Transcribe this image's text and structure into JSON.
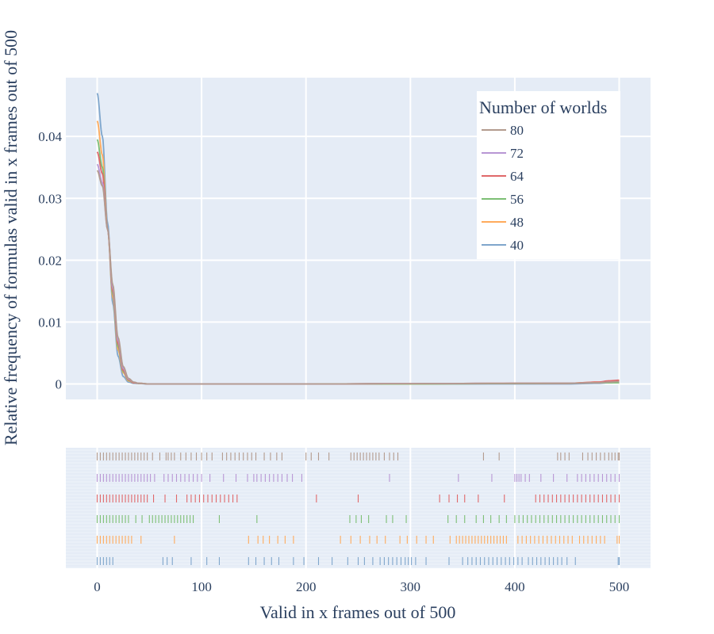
{
  "chart_data": {
    "type": "line",
    "subtype": "distplot-kde-with-rug",
    "xlabel": "Valid in x frames out of 500",
    "ylabel": "Relative frequency of formulas valid in x frames out of 500",
    "xlim": [
      -30,
      530
    ],
    "ylim": [
      -0.0025,
      0.0495
    ],
    "x_ticks": [
      0,
      100,
      200,
      300,
      400,
      500
    ],
    "x_tick_labels": [
      "0",
      "100",
      "200",
      "300",
      "400",
      "500"
    ],
    "y_ticks": [
      0,
      0.01,
      0.02,
      0.03,
      0.04
    ],
    "y_tick_labels": [
      "0",
      "0.01",
      "0.02",
      "0.03",
      "0.04"
    ],
    "grid": true,
    "plot_background": "#e5ecf6",
    "legend": {
      "title": "Number of worlds",
      "placement": "top-right",
      "order": [
        "80",
        "72",
        "64",
        "56",
        "48",
        "40"
      ]
    },
    "series": [
      {
        "name": "40",
        "color": "#7fa6cc",
        "x": [
          0,
          5,
          10,
          15,
          20,
          25,
          30,
          35,
          40,
          50,
          100,
          200,
          300,
          400,
          450,
          480,
          490,
          500
        ],
        "y": [
          0.047,
          0.04,
          0.026,
          0.013,
          0.0045,
          0.0012,
          0.0003,
          0.0001,
          5e-05,
          0,
          0,
          0,
          0,
          0,
          0,
          0.0001,
          0.0002,
          0.0003
        ]
      },
      {
        "name": "48",
        "color": "#ffab5c",
        "x": [
          0,
          5,
          10,
          15,
          20,
          25,
          30,
          35,
          40,
          50,
          100,
          200,
          300,
          400,
          450,
          480,
          490,
          500
        ],
        "y": [
          0.0425,
          0.037,
          0.025,
          0.014,
          0.0055,
          0.0018,
          0.0005,
          0.0002,
          0.0001,
          0,
          0,
          0,
          0,
          0.0001,
          0.0001,
          0.0003,
          0.0004,
          0.0005
        ]
      },
      {
        "name": "56",
        "color": "#7dbf74",
        "x": [
          0,
          5,
          10,
          15,
          20,
          25,
          30,
          35,
          40,
          50,
          100,
          200,
          300,
          400,
          450,
          480,
          490,
          500
        ],
        "y": [
          0.0395,
          0.035,
          0.025,
          0.0145,
          0.006,
          0.002,
          0.0006,
          0.0002,
          0.0001,
          0,
          0,
          0,
          0,
          5e-05,
          0.0001,
          0.0002,
          0.0002,
          0.0002
        ]
      },
      {
        "name": "64",
        "color": "#e0686a",
        "x": [
          0,
          5,
          10,
          15,
          20,
          25,
          30,
          35,
          40,
          50,
          100,
          200,
          300,
          400,
          450,
          480,
          490,
          500
        ],
        "y": [
          0.0375,
          0.034,
          0.025,
          0.015,
          0.0065,
          0.0022,
          0.0007,
          0.0002,
          0.0001,
          0,
          0,
          0,
          5e-05,
          0.0001,
          0.0001,
          0.0003,
          0.0005,
          0.0006
        ]
      },
      {
        "name": "72",
        "color": "#b896d4",
        "x": [
          0,
          5,
          10,
          15,
          20,
          25,
          30,
          35,
          40,
          50,
          100,
          200,
          300,
          400,
          450,
          480,
          490,
          500
        ],
        "y": [
          0.0355,
          0.0325,
          0.025,
          0.0155,
          0.007,
          0.0025,
          0.0008,
          0.0003,
          0.0001,
          0,
          0,
          0,
          5e-05,
          0.0001,
          0.0001,
          0.0002,
          0.0003,
          0.0004
        ]
      },
      {
        "name": "80",
        "color": "#b39b8e",
        "x": [
          0,
          5,
          10,
          15,
          20,
          25,
          30,
          35,
          40,
          50,
          100,
          200,
          300,
          400,
          450,
          480,
          490,
          500
        ],
        "y": [
          0.0345,
          0.032,
          0.025,
          0.016,
          0.0075,
          0.0028,
          0.0009,
          0.0003,
          0.0001,
          0,
          0,
          0,
          5e-05,
          0.0001,
          0.0001,
          0.0002,
          0.0003,
          0.0004
        ]
      }
    ],
    "rug": [
      {
        "name": "80",
        "color": "#b39b8e",
        "x": [
          0,
          3,
          6,
          9,
          12,
          15,
          18,
          21,
          24,
          27,
          30,
          33,
          36,
          39,
          42,
          45,
          48,
          53,
          60,
          66,
          68,
          71,
          74,
          80,
          85,
          90,
          95,
          100,
          105,
          110,
          120,
          124,
          128,
          132,
          136,
          140,
          144,
          148,
          152,
          160,
          166,
          172,
          177,
          200,
          205,
          212,
          222,
          243,
          246,
          249,
          252,
          255,
          258,
          261,
          264,
          267,
          270,
          275,
          280,
          284,
          288,
          370,
          385,
          441,
          444,
          448,
          452,
          465,
          470,
          474,
          478,
          482,
          486,
          490,
          493,
          496,
          499,
          500
        ]
      },
      {
        "name": "72",
        "color": "#b896d4",
        "x": [
          0,
          3,
          6,
          9,
          12,
          15,
          18,
          21,
          24,
          27,
          30,
          33,
          36,
          39,
          42,
          45,
          48,
          51,
          55,
          64,
          68,
          72,
          76,
          80,
          84,
          88,
          92,
          96,
          100,
          108,
          121,
          133,
          144,
          150,
          153,
          157,
          161,
          165,
          169,
          173,
          177,
          182,
          187,
          196,
          280,
          346,
          378,
          400,
          402,
          404,
          406,
          410,
          414,
          425,
          437,
          450,
          460,
          464,
          468,
          472,
          476,
          480,
          484,
          488,
          492,
          496,
          500
        ]
      },
      {
        "name": "64",
        "color": "#e0686a",
        "x": [
          0,
          3,
          6,
          9,
          12,
          15,
          18,
          21,
          24,
          27,
          30,
          33,
          36,
          39,
          42,
          45,
          48,
          54,
          65,
          76,
          86,
          90,
          94,
          98,
          102,
          106,
          110,
          114,
          118,
          122,
          126,
          130,
          134,
          210,
          250,
          328,
          337,
          345,
          352,
          365,
          390,
          420,
          424,
          428,
          432,
          436,
          440,
          444,
          448,
          452,
          456,
          460,
          464,
          468,
          472,
          476,
          480,
          484,
          488,
          492,
          496,
          500
        ]
      },
      {
        "name": "56",
        "color": "#7dbf74",
        "x": [
          0,
          3,
          6,
          9,
          12,
          15,
          18,
          21,
          24,
          27,
          30,
          37,
          43,
          50,
          53,
          56,
          59,
          62,
          65,
          68,
          71,
          74,
          77,
          80,
          83,
          86,
          89,
          92,
          117,
          153,
          242,
          248,
          253,
          260,
          277,
          283,
          296,
          336,
          344,
          352,
          363,
          370,
          377,
          385,
          392,
          400,
          404,
          408,
          412,
          416,
          420,
          424,
          428,
          432,
          436,
          440,
          444,
          448,
          452,
          456,
          460,
          464,
          468,
          472,
          476,
          480,
          484,
          488,
          492,
          496,
          500
        ]
      },
      {
        "name": "48",
        "color": "#ffab5c",
        "x": [
          0,
          3,
          6,
          9,
          12,
          15,
          18,
          21,
          24,
          27,
          30,
          33,
          42,
          74,
          145,
          154,
          159,
          165,
          173,
          180,
          188,
          233,
          243,
          252,
          261,
          268,
          276,
          290,
          297,
          306,
          315,
          322,
          338,
          344,
          347,
          350,
          353,
          356,
          359,
          362,
          365,
          368,
          371,
          374,
          377,
          380,
          383,
          386,
          389,
          392,
          403,
          407,
          411,
          415,
          419,
          423,
          427,
          431,
          435,
          439,
          443,
          447,
          451,
          455,
          462,
          466,
          470,
          474,
          478,
          482,
          486,
          498,
          500
        ]
      },
      {
        "name": "40",
        "color": "#7fa6cc",
        "x": [
          0,
          3,
          6,
          9,
          12,
          15,
          63,
          67,
          72,
          90,
          105,
          117,
          145,
          152,
          160,
          167,
          174,
          188,
          198,
          212,
          225,
          240,
          250,
          256,
          264,
          271,
          275,
          279,
          283,
          287,
          291,
          295,
          298,
          301,
          305,
          315,
          337,
          350,
          355,
          359,
          363,
          367,
          371,
          375,
          379,
          383,
          387,
          391,
          395,
          399,
          403,
          407,
          413,
          417,
          421,
          425,
          429,
          433,
          437,
          441,
          445,
          450,
          458,
          499,
          500
        ]
      }
    ]
  }
}
